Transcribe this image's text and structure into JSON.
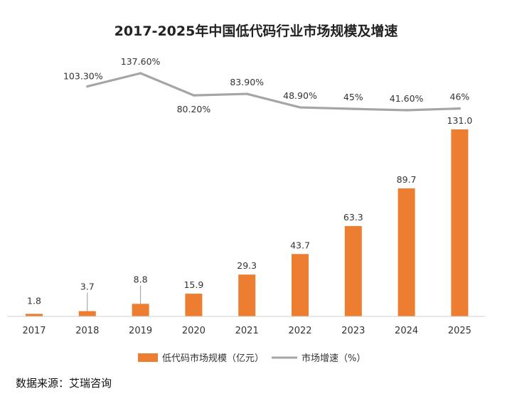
{
  "chart_data": {
    "type": "bar",
    "title": "2017-2025年中国低代码行业市场规模及增速",
    "categories": [
      "2017",
      "2018",
      "2019",
      "2020",
      "2021",
      "2022",
      "2023",
      "2024",
      "2025"
    ],
    "series": [
      {
        "name": "低代码市场规模（亿元）",
        "type": "bar",
        "color": "#ED7D31",
        "values": [
          1.8,
          3.7,
          8.8,
          15.9,
          29.3,
          43.7,
          63.3,
          89.7,
          131.0
        ],
        "labels": [
          "1.8",
          "3.7",
          "8.8",
          "15.9",
          "29.3",
          "43.7",
          "63.3",
          "89.7",
          "131.0"
        ]
      },
      {
        "name": "市场增速（%）",
        "type": "line",
        "color": "#A5A5A5",
        "values": [
          null,
          103.3,
          137.6,
          80.2,
          83.9,
          48.9,
          45,
          41.6,
          46
        ],
        "labels": [
          null,
          "103.30%",
          "137.60%",
          "80.20%",
          "83.90%",
          "48.90%",
          "45%",
          "41.60%",
          "46%"
        ]
      }
    ],
    "legend": {
      "position": "bottom",
      "bar_label": "低代码市场规模（亿元）",
      "line_label": "市场增速（%）"
    },
    "grid": false
  },
  "source": "数据来源：艾瑞咨询"
}
